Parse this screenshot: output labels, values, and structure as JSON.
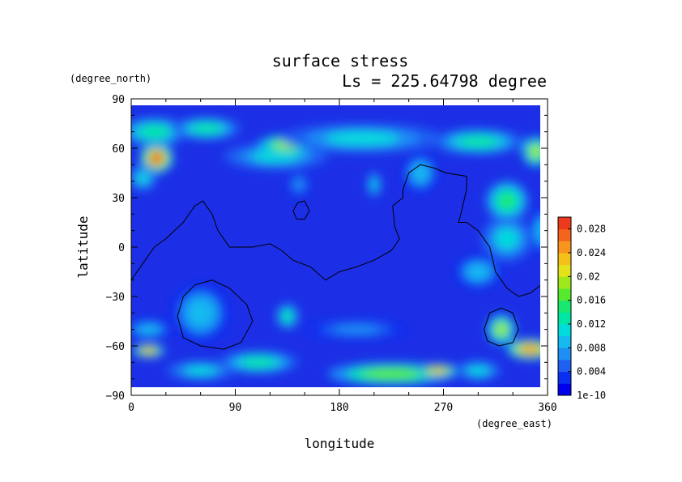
{
  "chart_data": {
    "type": "heatmap",
    "title": "surface stress",
    "subtitle": "Ls = 225.64798 degree",
    "xlabel": "longitude",
    "ylabel": "latitude",
    "x_unit": "(degree_east)",
    "y_unit": "(degree_north)",
    "xlim": [
      0,
      360
    ],
    "ylim": [
      -90,
      90
    ],
    "x_ticks": [
      0,
      90,
      180,
      270,
      360
    ],
    "y_ticks": [
      90,
      60,
      30,
      0,
      -30,
      -60,
      -90
    ],
    "background_color": "#1c2fe6",
    "colorbar": {
      "tick_labels": [
        "0.028",
        "0.024",
        "0.02",
        "0.016",
        "0.012",
        "0.008",
        "0.004",
        "1e-10"
      ],
      "tick_values": [
        0.028,
        0.024,
        0.02,
        0.016,
        0.012,
        0.008,
        0.004,
        0
      ],
      "range": [
        0,
        0.03
      ],
      "levels": [
        {
          "value": 0.0,
          "color": "#0000ee"
        },
        {
          "value": 0.002,
          "color": "#0a2ff0"
        },
        {
          "value": 0.004,
          "color": "#1f5ff2"
        },
        {
          "value": 0.006,
          "color": "#1e8ff4"
        },
        {
          "value": 0.008,
          "color": "#13b9f0"
        },
        {
          "value": 0.01,
          "color": "#00dcdc"
        },
        {
          "value": 0.012,
          "color": "#00e6a6"
        },
        {
          "value": 0.014,
          "color": "#18e870"
        },
        {
          "value": 0.016,
          "color": "#56ea2e"
        },
        {
          "value": 0.018,
          "color": "#9ee81c"
        },
        {
          "value": 0.02,
          "color": "#e4e21a"
        },
        {
          "value": 0.022,
          "color": "#f6c01a"
        },
        {
          "value": 0.024,
          "color": "#f7951c"
        },
        {
          "value": 0.026,
          "color": "#f5641c"
        },
        {
          "value": 0.028,
          "color": "#ee3a1c"
        },
        {
          "value": 0.03,
          "color": "#e0201c"
        }
      ]
    },
    "field_blobs": [
      {
        "lon": 22,
        "lat": 54,
        "rlon": 14,
        "rlat": 9,
        "value": 0.026
      },
      {
        "lon": 20,
        "lat": 70,
        "rlon": 30,
        "rlat": 9,
        "value": 0.012
      },
      {
        "lon": 10,
        "lat": 42,
        "rlon": 12,
        "rlat": 8,
        "value": 0.01
      },
      {
        "lon": 125,
        "lat": 55,
        "rlon": 45,
        "rlat": 8,
        "value": 0.01
      },
      {
        "lon": 135,
        "lat": 62,
        "rlon": 25,
        "rlat": 6,
        "value": 0.018
      },
      {
        "lon": 65,
        "lat": 72,
        "rlon": 30,
        "rlat": 7,
        "value": 0.012
      },
      {
        "lon": 200,
        "lat": 66,
        "rlon": 70,
        "rlat": 9,
        "value": 0.01
      },
      {
        "lon": 300,
        "lat": 64,
        "rlon": 40,
        "rlat": 8,
        "value": 0.012
      },
      {
        "lon": 350,
        "lat": 58,
        "rlon": 12,
        "rlat": 9,
        "value": 0.018
      },
      {
        "lon": 250,
        "lat": 45,
        "rlon": 15,
        "rlat": 12,
        "value": 0.008
      },
      {
        "lon": 210,
        "lat": 38,
        "rlon": 6,
        "rlat": 8,
        "value": 0.01
      },
      {
        "lon": 145,
        "lat": 38,
        "rlon": 10,
        "rlat": 8,
        "value": 0.006
      },
      {
        "lon": 325,
        "lat": 28,
        "rlon": 18,
        "rlat": 12,
        "value": 0.014
      },
      {
        "lon": 325,
        "lat": 5,
        "rlon": 22,
        "rlat": 14,
        "value": 0.01
      },
      {
        "lon": 355,
        "lat": 10,
        "rlon": 10,
        "rlat": 14,
        "value": 0.008
      },
      {
        "lon": 300,
        "lat": -15,
        "rlon": 20,
        "rlat": 10,
        "value": 0.008
      },
      {
        "lon": 60,
        "lat": -40,
        "rlon": 25,
        "rlat": 18,
        "value": 0.008
      },
      {
        "lon": 135,
        "lat": -42,
        "rlon": 10,
        "rlat": 8,
        "value": 0.012
      },
      {
        "lon": 15,
        "lat": -50,
        "rlon": 20,
        "rlat": 6,
        "value": 0.008
      },
      {
        "lon": 110,
        "lat": -70,
        "rlon": 35,
        "rlat": 7,
        "value": 0.012
      },
      {
        "lon": 60,
        "lat": -75,
        "rlon": 30,
        "rlat": 6,
        "value": 0.01
      },
      {
        "lon": 15,
        "lat": -63,
        "rlon": 14,
        "rlat": 4,
        "value": 0.022
      },
      {
        "lon": 225,
        "lat": -77,
        "rlon": 55,
        "rlat": 7,
        "value": 0.016
      },
      {
        "lon": 265,
        "lat": -75,
        "rlon": 18,
        "rlat": 4,
        "value": 0.022
      },
      {
        "lon": 195,
        "lat": -50,
        "rlon": 45,
        "rlat": 6,
        "value": 0.006
      },
      {
        "lon": 320,
        "lat": -50,
        "rlon": 12,
        "rlat": 9,
        "value": 0.018
      },
      {
        "lon": 345,
        "lat": -62,
        "rlon": 20,
        "rlat": 6,
        "value": 0.024
      },
      {
        "lon": 300,
        "lat": -75,
        "rlon": 20,
        "rlat": 6,
        "value": 0.01
      }
    ],
    "topography_contours": [
      [
        [
          0,
          -20
        ],
        [
          10,
          -10
        ],
        [
          20,
          0
        ],
        [
          30,
          5
        ],
        [
          45,
          15
        ],
        [
          55,
          25
        ],
        [
          62,
          28
        ],
        [
          70,
          20
        ],
        [
          75,
          10
        ],
        [
          85,
          0
        ],
        [
          105,
          0
        ],
        [
          120,
          2
        ],
        [
          130,
          -2
        ],
        [
          140,
          -8
        ],
        [
          155,
          -12
        ],
        [
          168,
          -20
        ],
        [
          180,
          -15
        ],
        [
          195,
          -12
        ],
        [
          210,
          -8
        ],
        [
          225,
          -2
        ],
        [
          232,
          5
        ],
        [
          228,
          12
        ],
        [
          226,
          25
        ],
        [
          235,
          30
        ],
        [
          235,
          35
        ],
        [
          240,
          45
        ],
        [
          250,
          50
        ],
        [
          262,
          48
        ],
        [
          272,
          45
        ],
        [
          290,
          43
        ],
        [
          290,
          35
        ],
        [
          285,
          20
        ],
        [
          283,
          15
        ],
        [
          290,
          15
        ],
        [
          300,
          10
        ],
        [
          310,
          0
        ],
        [
          315,
          -15
        ],
        [
          325,
          -25
        ],
        [
          335,
          -30
        ],
        [
          345,
          -28
        ],
        [
          360,
          -20
        ]
      ],
      [
        [
          140,
          22
        ],
        [
          144,
          27
        ],
        [
          150,
          28
        ],
        [
          154,
          22
        ],
        [
          150,
          17
        ],
        [
          143,
          17
        ],
        [
          140,
          22
        ]
      ],
      [
        [
          40,
          -42
        ],
        [
          45,
          -30
        ],
        [
          55,
          -23
        ],
        [
          70,
          -20
        ],
        [
          85,
          -25
        ],
        [
          100,
          -35
        ],
        [
          105,
          -45
        ],
        [
          95,
          -58
        ],
        [
          80,
          -62
        ],
        [
          60,
          -60
        ],
        [
          45,
          -55
        ],
        [
          40,
          -42
        ]
      ],
      [
        [
          305,
          -50
        ],
        [
          310,
          -40
        ],
        [
          320,
          -37
        ],
        [
          330,
          -40
        ],
        [
          335,
          -50
        ],
        [
          330,
          -58
        ],
        [
          318,
          -60
        ],
        [
          308,
          -57
        ],
        [
          305,
          -50
        ]
      ]
    ]
  }
}
